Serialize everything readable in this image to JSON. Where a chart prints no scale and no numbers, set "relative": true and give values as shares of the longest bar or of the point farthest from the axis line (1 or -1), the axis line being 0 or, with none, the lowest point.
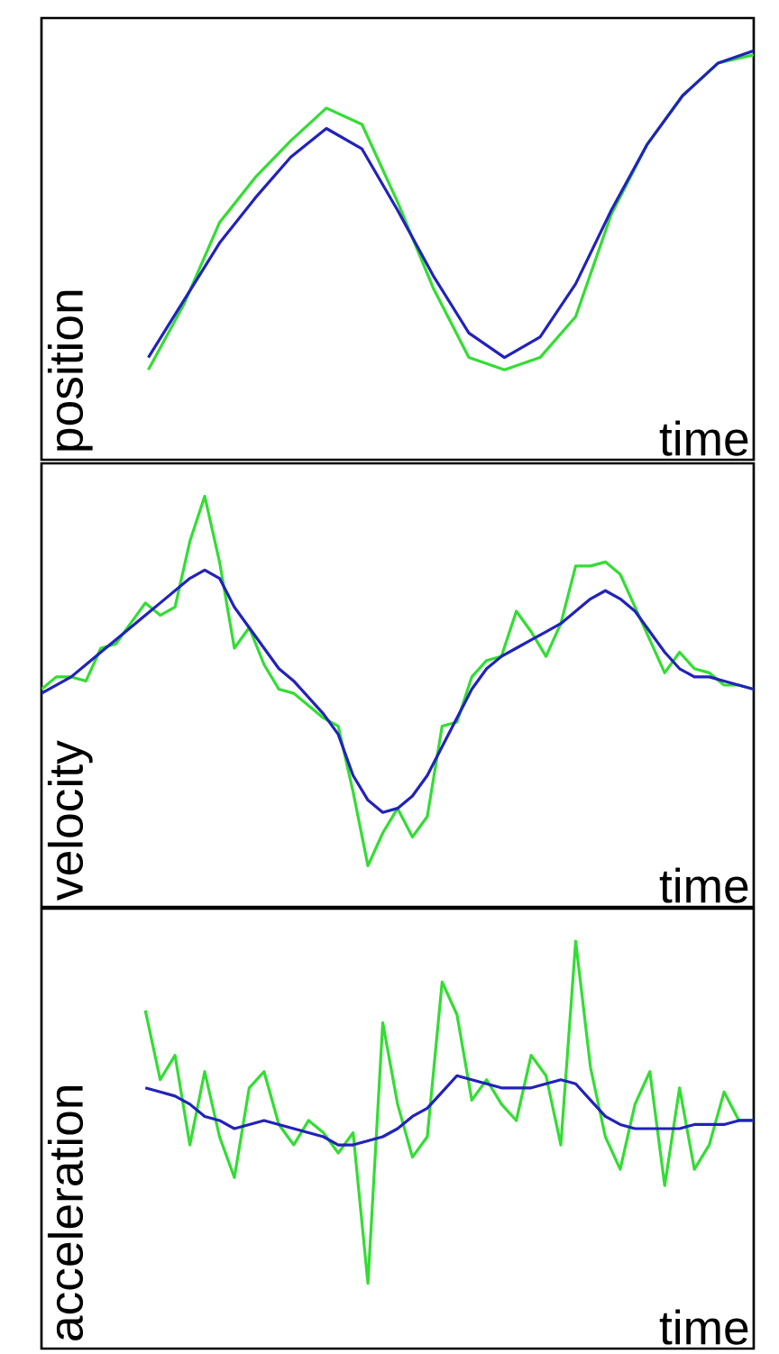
{
  "chart_data": [
    {
      "type": "line",
      "ylabel": "position",
      "xlabel": "time",
      "relative": true,
      "line_style": "solid",
      "categories": [
        null,
        null,
        null,
        null,
        null,
        null,
        null,
        null,
        null,
        null,
        null,
        null,
        null,
        null,
        null,
        null,
        null,
        null,
        null,
        null,
        null
      ],
      "series": [
        {
          "color": "#33dd33",
          "values": [
            null,
            null,
            null,
            0.22,
            0.38,
            0.58,
            0.69,
            0.78,
            0.86,
            0.82,
            0.63,
            0.42,
            0.25,
            0.22,
            0.25,
            0.35,
            0.6,
            0.77,
            0.89,
            0.97,
            0.99
          ]
        },
        {
          "color": "#2222bb",
          "values": [
            null,
            null,
            null,
            0.25,
            0.39,
            0.53,
            0.64,
            0.74,
            0.81,
            0.76,
            0.61,
            0.45,
            0.31,
            0.25,
            0.3,
            0.43,
            0.61,
            0.77,
            0.89,
            0.97,
            1.0
          ]
        }
      ]
    },
    {
      "type": "line",
      "ylabel": "velocity",
      "xlabel": "time",
      "relative": true,
      "line_style": "solid",
      "categories": [
        null,
        null,
        null,
        null,
        null,
        null,
        null,
        null,
        null,
        null,
        null,
        null,
        null,
        null,
        null,
        null,
        null,
        null,
        null,
        null,
        null,
        null,
        null,
        null,
        null,
        null,
        null,
        null,
        null,
        null,
        null,
        null,
        null,
        null,
        null,
        null,
        null,
        null,
        null,
        null,
        null,
        null,
        null,
        null,
        null,
        null,
        null,
        null,
        null
      ],
      "series": [
        {
          "color": "#33dd33",
          "values": [
            0.53,
            0.56,
            0.56,
            0.55,
            0.63,
            0.64,
            0.69,
            0.74,
            0.71,
            0.73,
            0.89,
            1.0,
            0.84,
            0.63,
            0.68,
            0.59,
            0.53,
            0.52,
            0.49,
            0.46,
            0.44,
            0.28,
            0.1,
            0.18,
            0.24,
            0.17,
            0.22,
            0.44,
            0.45,
            0.56,
            0.6,
            0.61,
            0.72,
            0.67,
            0.61,
            0.69,
            0.83,
            0.83,
            0.84,
            0.81,
            0.73,
            0.65,
            0.57,
            0.62,
            0.58,
            0.57,
            0.54,
            0.54,
            0.53
          ]
        },
        {
          "color": "#2222bb",
          "values": [
            0.52,
            0.54,
            0.56,
            0.59,
            0.62,
            0.65,
            0.68,
            0.71,
            0.74,
            0.77,
            0.8,
            0.82,
            0.8,
            0.73,
            0.68,
            0.63,
            0.58,
            0.55,
            0.51,
            0.47,
            0.42,
            0.32,
            0.26,
            0.23,
            0.24,
            0.27,
            0.32,
            0.39,
            0.46,
            0.53,
            0.58,
            0.61,
            0.63,
            0.65,
            0.67,
            0.69,
            0.72,
            0.75,
            0.77,
            0.75,
            0.72,
            0.67,
            0.62,
            0.58,
            0.56,
            0.56,
            0.55,
            0.54,
            0.53
          ]
        }
      ]
    },
    {
      "type": "line",
      "ylabel": "acceleration",
      "xlabel": "time",
      "relative": true,
      "line_style": "solid",
      "categories": [
        null,
        null,
        null,
        null,
        null,
        null,
        null,
        null,
        null,
        null,
        null,
        null,
        null,
        null,
        null,
        null,
        null,
        null,
        null,
        null,
        null,
        null,
        null,
        null,
        null,
        null,
        null,
        null,
        null,
        null,
        null,
        null,
        null,
        null,
        null,
        null,
        null,
        null,
        null,
        null,
        null,
        null,
        null,
        null,
        null,
        null,
        null,
        null,
        null
      ],
      "series": [
        {
          "color": "#33dd33",
          "values": [
            null,
            null,
            null,
            null,
            null,
            null,
            null,
            0.83,
            0.66,
            0.72,
            0.5,
            0.68,
            0.52,
            0.42,
            0.64,
            0.68,
            0.55,
            0.5,
            0.56,
            0.53,
            0.48,
            0.53,
            0.16,
            0.8,
            0.6,
            0.47,
            0.52,
            0.9,
            0.82,
            0.61,
            0.66,
            0.6,
            0.56,
            0.72,
            0.67,
            0.5,
            1.0,
            0.69,
            0.52,
            0.44,
            0.6,
            0.68,
            0.4,
            0.64,
            0.44,
            0.5,
            0.63,
            0.56,
            0.56
          ]
        },
        {
          "color": "#2222bb",
          "values": [
            null,
            null,
            null,
            null,
            null,
            null,
            null,
            0.64,
            0.63,
            0.62,
            0.6,
            0.57,
            0.56,
            0.54,
            0.55,
            0.56,
            0.55,
            0.54,
            0.53,
            0.52,
            0.5,
            0.5,
            0.51,
            0.52,
            0.54,
            0.57,
            0.59,
            0.63,
            0.67,
            0.66,
            0.65,
            0.64,
            0.64,
            0.64,
            0.65,
            0.66,
            0.65,
            0.61,
            0.57,
            0.55,
            0.54,
            0.54,
            0.54,
            0.54,
            0.55,
            0.55,
            0.55,
            0.56,
            0.56
          ]
        }
      ]
    }
  ]
}
